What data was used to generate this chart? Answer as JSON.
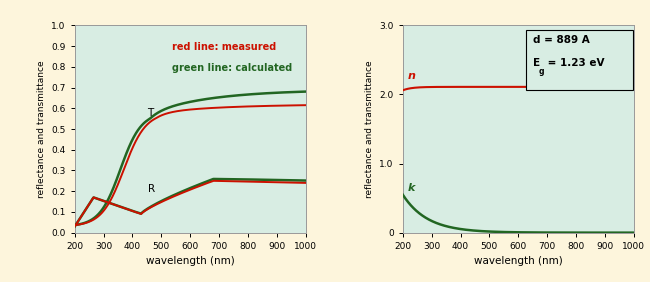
{
  "background_color": "#fdf5dc",
  "plot_bg_color": "#d8ede3",
  "fig_width": 6.5,
  "fig_height": 2.82,
  "left_plot": {
    "xlabel": "wavelength (nm)",
    "ylabel": "reflectance and transmittance",
    "xlim": [
      200,
      1000
    ],
    "ylim": [
      0.0,
      1.0
    ],
    "yticks": [
      0.0,
      0.1,
      0.2,
      0.3,
      0.4,
      0.5,
      0.6,
      0.7,
      0.8,
      0.9,
      1.0
    ],
    "xticks": [
      200,
      300,
      400,
      500,
      600,
      700,
      800,
      900,
      1000
    ],
    "legend_text_red": "red line: measured",
    "legend_text_green": "green line: calculated",
    "label_T": "T",
    "label_R": "R",
    "red_color": "#cc1100",
    "green_color": "#226622"
  },
  "right_plot": {
    "xlabel": "wavelength (nm)",
    "ylabel": "reflectance and transmittance",
    "xlim": [
      200,
      1000
    ],
    "ylim": [
      0.0,
      3.0
    ],
    "yticks": [
      0.0,
      1.0,
      2.0,
      3.0
    ],
    "ytick_labels": [
      "0",
      "1.0",
      "2.0",
      "3.0"
    ],
    "xticks": [
      200,
      300,
      400,
      500,
      600,
      700,
      800,
      900,
      1000
    ],
    "annotation_line1": "d = 889 A",
    "annotation_line2": "E",
    "annotation_line2b": "g",
    "annotation_line2c": " = 1.23 eV",
    "label_n": "n",
    "label_k": "k",
    "red_color": "#cc1100",
    "green_color": "#226622"
  }
}
